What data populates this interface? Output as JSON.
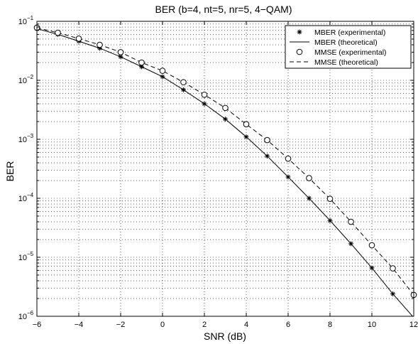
{
  "chart_data": {
    "type": "line",
    "title": "BER (b=4, nt=5, nr=5, 4−QAM)",
    "xlabel": "SNR (dB)",
    "ylabel": "BER",
    "xlim": [
      -6,
      12
    ],
    "ylim": [
      1e-06,
      0.1
    ],
    "yscale": "log",
    "grid": true,
    "legend_position": "top-right",
    "x_ticks": [
      "−6",
      "−4",
      "−2",
      "0",
      "2",
      "4",
      "6",
      "8",
      "10",
      "12"
    ],
    "y_ticks": [
      {
        "base": "10",
        "exp": "−6"
      },
      {
        "base": "10",
        "exp": "−5"
      },
      {
        "base": "10",
        "exp": "−4"
      },
      {
        "base": "10",
        "exp": "−3"
      },
      {
        "base": "10",
        "exp": "−2"
      },
      {
        "base": "10",
        "exp": "−1"
      }
    ],
    "series": [
      {
        "name": "MBER (experimental)",
        "marker": "asterisk",
        "line": "none",
        "x": [
          -6,
          -5,
          -4,
          -3,
          -2,
          -1,
          0,
          1,
          2,
          3,
          4,
          5,
          6,
          7,
          8,
          9,
          10,
          11
        ],
        "y": [
          0.075,
          0.06,
          0.046,
          0.035,
          0.025,
          0.017,
          0.0115,
          0.0069,
          0.004,
          0.0022,
          0.0011,
          0.00052,
          0.00023,
          0.0001,
          4.2e-05,
          1.7e-05,
          6.6e-06,
          2.4e-06
        ]
      },
      {
        "name": "MBER (theoretical)",
        "marker": "none",
        "line": "solid",
        "x": [
          -6,
          -5,
          -4,
          -3,
          -2,
          -1,
          0,
          1,
          2,
          3,
          4,
          5,
          6,
          7,
          8,
          9,
          10,
          11,
          12
        ],
        "y": [
          0.075,
          0.06,
          0.046,
          0.035,
          0.025,
          0.017,
          0.0115,
          0.0069,
          0.004,
          0.0022,
          0.0011,
          0.00052,
          0.00023,
          0.0001,
          4.2e-05,
          1.7e-05,
          6.6e-06,
          2.4e-06,
          9.5e-07
        ]
      },
      {
        "name": "MMSE (experimental)",
        "marker": "circle",
        "line": "none",
        "x": [
          -6,
          -5,
          -4,
          -3,
          -2,
          -1,
          0,
          1,
          2,
          3,
          4,
          5,
          6,
          7,
          8,
          9,
          10,
          11,
          12
        ],
        "y": [
          0.078,
          0.064,
          0.051,
          0.04,
          0.03,
          0.02,
          0.0145,
          0.0093,
          0.0057,
          0.0034,
          0.0018,
          0.00097,
          0.00047,
          0.00022,
          9.8e-05,
          4e-05,
          1.6e-05,
          6.5e-06,
          2.3e-06
        ]
      },
      {
        "name": "MMSE (theoretical)",
        "marker": "none",
        "line": "dashed",
        "x": [
          -6,
          -5,
          -4,
          -3,
          -2,
          -1,
          0,
          1,
          2,
          3,
          4,
          5,
          6,
          7,
          8,
          9,
          10,
          11,
          12
        ],
        "y": [
          0.078,
          0.064,
          0.051,
          0.04,
          0.03,
          0.02,
          0.0145,
          0.0093,
          0.0057,
          0.0034,
          0.0018,
          0.00097,
          0.00047,
          0.00022,
          9.8e-05,
          4e-05,
          1.6e-05,
          6.5e-06,
          2.3e-06
        ]
      }
    ]
  }
}
